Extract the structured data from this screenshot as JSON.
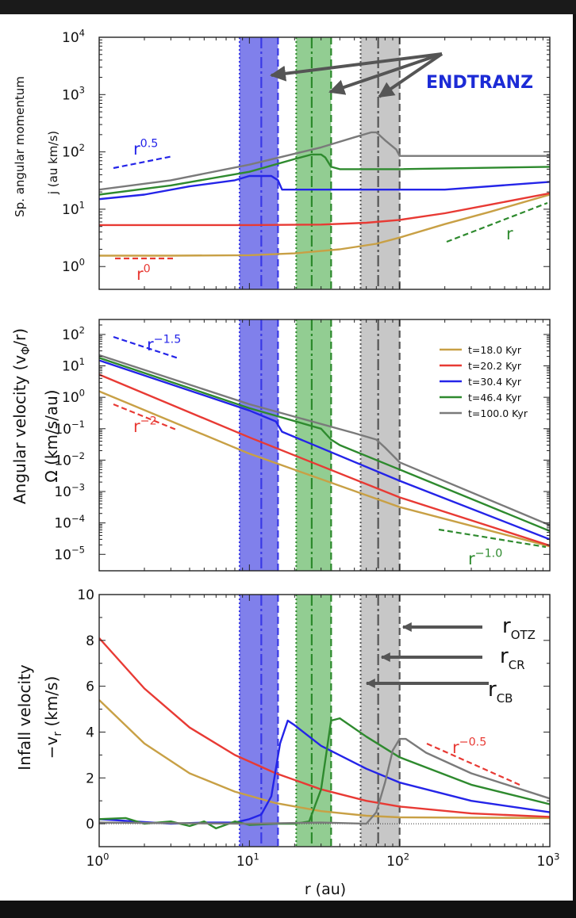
{
  "figure": {
    "xlabel": "r (au)",
    "xticks": [
      {
        "v": 1,
        "label": "10",
        "exp": "0"
      },
      {
        "v": 10,
        "label": "10",
        "exp": "1"
      },
      {
        "v": 100,
        "label": "10",
        "exp": "2"
      },
      {
        "v": 1000,
        "label": "10",
        "exp": "3"
      }
    ],
    "xlim": [
      1,
      1000
    ],
    "xscale": "log"
  },
  "transitions": [
    {
      "name": "blue",
      "color": "#3a3ae6",
      "fill": "#6a6ae8",
      "r_cb": 8.6,
      "r_cr": 12.0,
      "r_otz": 15.5
    },
    {
      "name": "green",
      "color": "#2c8a2c",
      "fill": "#7fc47f",
      "r_cb": 20.5,
      "r_cr": 26.0,
      "r_otz": 35.0
    },
    {
      "name": "gray",
      "color": "#555555",
      "fill": "#bdbdbd",
      "r_cb": 55.0,
      "r_cr": 72.0,
      "r_otz": 100.0
    }
  ],
  "legend": {
    "items": [
      {
        "label": "t=18.0  Kyr",
        "color": "#c8a045"
      },
      {
        "label": "t=20.2  Kyr",
        "color": "#e83a34"
      },
      {
        "label": "t=30.4  Kyr",
        "color": "#2424e8"
      },
      {
        "label": "t=46.4  Kyr",
        "color": "#2e8a2e"
      },
      {
        "label": "t=100.0  Kyr",
        "color": "#7a7a7a"
      }
    ]
  },
  "chart_data": [
    {
      "type": "line",
      "panel": "top",
      "ylabel_1": "Sp. angular momentum",
      "ylabel_2": "j (au km/s)",
      "yscale": "log",
      "ylim": [
        0.4,
        10000
      ],
      "yticks": [
        {
          "v": 1,
          "label": "10",
          "exp": "0"
        },
        {
          "v": 10,
          "label": "10",
          "exp": "1"
        },
        {
          "v": 100,
          "label": "10",
          "exp": "2"
        },
        {
          "v": 1000,
          "label": "10",
          "exp": "3"
        },
        {
          "v": 10000,
          "label": "10",
          "exp": "4"
        }
      ],
      "annotation_text": "ENDTRANZ",
      "slopes": [
        {
          "label": "r",
          "exp": "0.5",
          "color": "#2424e8"
        },
        {
          "label": "r",
          "exp": "0",
          "color": "#e83a34"
        },
        {
          "label": "r",
          "exp": "",
          "color": "#2e8a2e"
        }
      ],
      "series": [
        {
          "name": "t=18.0 Kyr",
          "color": "#c8a045",
          "x": [
            1,
            3,
            10,
            20,
            40,
            70,
            100,
            200,
            400,
            1000
          ],
          "y": [
            1.55,
            1.55,
            1.58,
            1.7,
            2.0,
            2.5,
            3.2,
            5.5,
            9.0,
            18
          ]
        },
        {
          "name": "t=20.2 Kyr",
          "color": "#e83a34",
          "x": [
            1,
            10,
            30,
            60,
            100,
            200,
            400,
            1000
          ],
          "y": [
            5.3,
            5.3,
            5.4,
            5.8,
            6.5,
            8.5,
            12,
            19
          ]
        },
        {
          "name": "t=30.4 Kyr",
          "color": "#2424e8",
          "x": [
            1,
            2,
            4,
            8,
            10,
            12,
            14,
            15.5,
            16.5,
            50,
            200,
            1000
          ],
          "y": [
            15,
            18,
            25,
            32,
            38,
            38,
            38,
            32,
            22,
            22,
            22,
            30
          ]
        },
        {
          "name": "t=46.4 Kyr",
          "color": "#2e8a2e",
          "x": [
            1,
            3,
            10,
            20,
            26,
            30,
            32,
            35,
            40,
            100,
            1000
          ],
          "y": [
            18,
            26,
            45,
            75,
            90,
            90,
            80,
            55,
            50,
            50,
            55
          ]
        },
        {
          "name": "t=100.0 Kyr",
          "color": "#7a7a7a",
          "x": [
            1,
            3,
            10,
            30,
            50,
            65,
            70,
            80,
            95,
            100,
            1000
          ],
          "y": [
            22,
            32,
            60,
            120,
            180,
            220,
            220,
            160,
            110,
            85,
            85
          ]
        }
      ]
    },
    {
      "type": "line",
      "panel": "middle",
      "ylabel_1": "Angular  velocity (v",
      "ylabel_phi": "Φ",
      "ylabel_end": "/r)",
      "ylabel_2": "Ω (km/s/au)",
      "yscale": "log",
      "ylim": [
        3e-06,
        300
      ],
      "yticks": [
        {
          "v": 1e-05,
          "label": "10",
          "exp": "−5"
        },
        {
          "v": 0.0001,
          "label": "10",
          "exp": "−4"
        },
        {
          "v": 0.001,
          "label": "10",
          "exp": "−3"
        },
        {
          "v": 0.01,
          "label": "10",
          "exp": "−2"
        },
        {
          "v": 0.1,
          "label": "10",
          "exp": "−1"
        },
        {
          "v": 1,
          "label": "10",
          "exp": "0"
        },
        {
          "v": 10,
          "label": "10",
          "exp": "1"
        },
        {
          "v": 100,
          "label": "10",
          "exp": "2"
        }
      ],
      "slopes": [
        {
          "label": "r",
          "exp": "−1.5",
          "color": "#2424e8"
        },
        {
          "label": "r",
          "exp": "−2",
          "color": "#e83a34"
        },
        {
          "label": "r",
          "exp": "−1.0",
          "color": "#2e8a2e"
        }
      ],
      "series": [
        {
          "name": "t=18.0 Kyr",
          "color": "#c8a045",
          "x": [
            1,
            10,
            100,
            1000
          ],
          "y": [
            1.55,
            0.016,
            0.00032,
            1.8e-05
          ]
        },
        {
          "name": "t=20.2 Kyr",
          "color": "#e83a34",
          "x": [
            1,
            10,
            100,
            1000
          ],
          "y": [
            5.3,
            0.053,
            0.00065,
            1.9e-05
          ]
        },
        {
          "name": "t=30.4 Kyr",
          "color": "#2424e8",
          "x": [
            1,
            10,
            15,
            16.5,
            100,
            1000
          ],
          "y": [
            15,
            0.38,
            0.17,
            0.08,
            0.0022,
            3e-05
          ]
        },
        {
          "name": "t=46.4 Kyr",
          "color": "#2e8a2e",
          "x": [
            1,
            10,
            30,
            35,
            40,
            100,
            1000
          ],
          "y": [
            18,
            0.45,
            0.1,
            0.045,
            0.03,
            0.005,
            5.5e-05
          ]
        },
        {
          "name": "t=100.0 Kyr",
          "color": "#7a7a7a",
          "x": [
            1,
            10,
            50,
            70,
            80,
            100,
            1000
          ],
          "y": [
            22,
            0.6,
            0.072,
            0.045,
            0.025,
            0.0085,
            8.5e-05
          ]
        }
      ]
    },
    {
      "type": "line",
      "panel": "bottom",
      "ylabel_1": "Infall velocity",
      "ylabel_2": "−v",
      "ylabel_sub": "r",
      "ylabel_end": " (km/s)",
      "yscale": "linear",
      "ylim": [
        -1,
        10
      ],
      "yticks": [
        {
          "v": 0,
          "label": "0"
        },
        {
          "v": 2,
          "label": "2"
        },
        {
          "v": 4,
          "label": "4"
        },
        {
          "v": 6,
          "label": "6"
        },
        {
          "v": 8,
          "label": "8"
        },
        {
          "v": 10,
          "label": "10"
        }
      ],
      "radii_labels": [
        {
          "label": "r",
          "sub": "OTZ"
        },
        {
          "label": "r",
          "sub": "CR"
        },
        {
          "label": "r",
          "sub": "CB"
        }
      ],
      "slopes": [
        {
          "label": "r",
          "exp": "−0.5",
          "color": "#e83a34"
        }
      ],
      "series": [
        {
          "name": "t=18.0 Kyr",
          "color": "#c8a045",
          "x": [
            1,
            2,
            4,
            8,
            15,
            30,
            60,
            100,
            1000
          ],
          "y": [
            5.4,
            3.5,
            2.2,
            1.4,
            0.9,
            0.55,
            0.35,
            0.28,
            0.25
          ]
        },
        {
          "name": "t=20.2 Kyr",
          "color": "#e83a34",
          "x": [
            1,
            2,
            4,
            8,
            15,
            30,
            60,
            100,
            300,
            1000
          ],
          "y": [
            8.1,
            5.9,
            4.2,
            3.0,
            2.2,
            1.5,
            1.0,
            0.75,
            0.45,
            0.3
          ]
        },
        {
          "name": "t=30.4 Kyr",
          "color": "#2424e8",
          "x": [
            1,
            3,
            5,
            8,
            10,
            12,
            14,
            16,
            18,
            20,
            30,
            60,
            100,
            300,
            1000
          ],
          "y": [
            0.2,
            0.0,
            0.05,
            0.05,
            0.2,
            0.4,
            1.2,
            3.5,
            4.5,
            4.3,
            3.4,
            2.4,
            1.8,
            1.0,
            0.5
          ]
        },
        {
          "name": "t=46.4 Kyr",
          "color": "#2e8a2e",
          "x": [
            1,
            1.5,
            2,
            3,
            4,
            5,
            6,
            8,
            10,
            15,
            20,
            25,
            30,
            35,
            40,
            60,
            100,
            300,
            1000
          ],
          "y": [
            0.2,
            0.25,
            0.0,
            0.1,
            -0.1,
            0.1,
            -0.2,
            0.1,
            -0.05,
            0.0,
            0.0,
            0.1,
            1.5,
            4.5,
            4.6,
            3.8,
            2.9,
            1.7,
            0.85
          ]
        },
        {
          "name": "t=100.0 Kyr",
          "color": "#7a7a7a",
          "x": [
            1,
            10,
            30,
            60,
            70,
            80,
            90,
            100,
            110,
            150,
            300,
            1000
          ],
          "y": [
            0.05,
            0.0,
            0.05,
            0.0,
            0.5,
            1.8,
            3.2,
            3.7,
            3.7,
            3.1,
            2.2,
            1.1
          ]
        }
      ]
    }
  ]
}
